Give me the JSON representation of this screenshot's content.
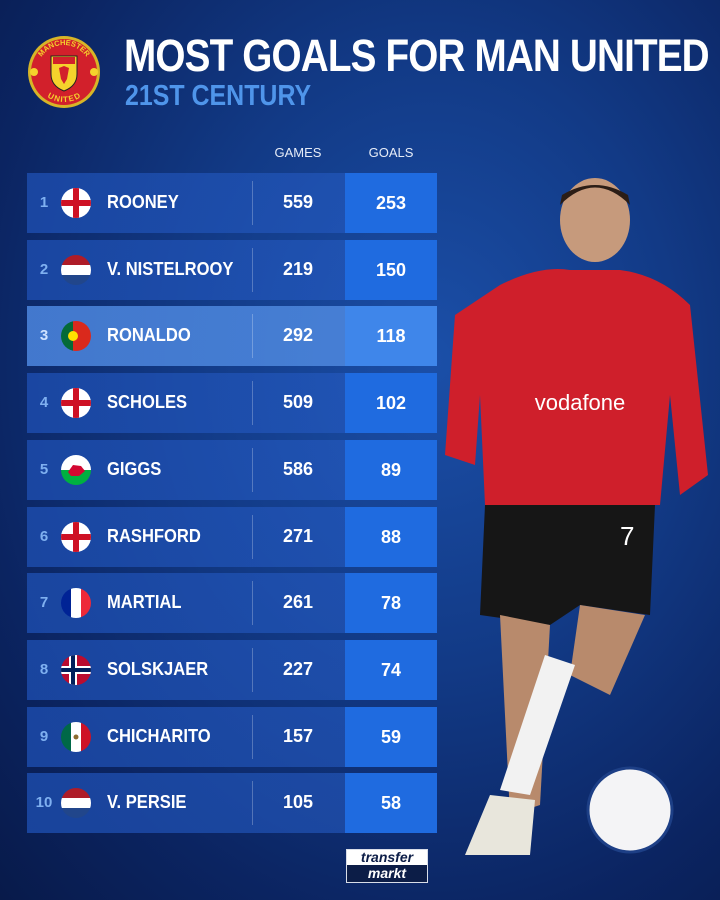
{
  "header": {
    "title": "MOST GOALS FOR MAN UNITED",
    "subtitle": "21ST CENTURY",
    "crest_text_top": "MANCHESTER",
    "crest_text_bottom": "UNITED"
  },
  "columns": {
    "games": "GAMES",
    "goals": "GOALS"
  },
  "colors": {
    "background": "#123a86",
    "row": "#1e50b4",
    "goals_cell": "#1f6be0",
    "subtitle": "#4f95ea",
    "highlight_row": "#508ce6"
  },
  "highlighted_rank": 3,
  "chart_data": {
    "type": "table",
    "title": "MOST GOALS FOR MAN UNITED",
    "subtitle": "21ST CENTURY",
    "columns": [
      "GAMES",
      "GOALS"
    ],
    "rows": [
      {
        "rank": "1",
        "flag": "england",
        "name": "ROONEY",
        "games": "559",
        "goals": "253"
      },
      {
        "rank": "2",
        "flag": "netherlands",
        "name": "V. NISTELROOY",
        "games": "219",
        "goals": "150"
      },
      {
        "rank": "3",
        "flag": "portugal",
        "name": "RONALDO",
        "games": "292",
        "goals": "118"
      },
      {
        "rank": "4",
        "flag": "england",
        "name": "SCHOLES",
        "games": "509",
        "goals": "102"
      },
      {
        "rank": "5",
        "flag": "wales",
        "name": "GIGGS",
        "games": "586",
        "goals": "89"
      },
      {
        "rank": "6",
        "flag": "england",
        "name": "RASHFORD",
        "games": "271",
        "goals": "88"
      },
      {
        "rank": "7",
        "flag": "france",
        "name": "MARTIAL",
        "games": "261",
        "goals": "78"
      },
      {
        "rank": "8",
        "flag": "norway",
        "name": "SOLSKJAER",
        "games": "227",
        "goals": "74"
      },
      {
        "rank": "9",
        "flag": "mexico",
        "name": "CHICHARITO",
        "games": "157",
        "goals": "59"
      },
      {
        "rank": "10",
        "flag": "netherlands",
        "name": "V. PERSIE",
        "games": "105",
        "goals": "58"
      }
    ]
  },
  "player_photo": {
    "shirt_sponsor": "vodafone",
    "shirt_number": "7"
  },
  "footer": {
    "logo_top": "transfer",
    "logo_bottom": "markt"
  }
}
